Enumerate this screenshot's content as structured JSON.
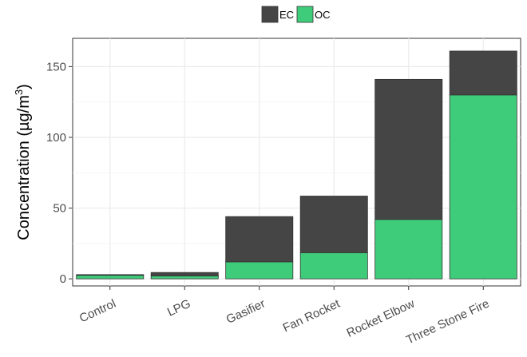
{
  "chart_data": {
    "type": "bar",
    "stacked": true,
    "categories": [
      "Control",
      "LPG",
      "Gasifier",
      "Fan Rocket",
      "Rocket Elbow",
      "Three Stone Fire"
    ],
    "series": [
      {
        "name": "OC",
        "color": "#3fcc7a",
        "values": [
          2.5,
          2,
          12,
          18.5,
          42,
          130
        ]
      },
      {
        "name": "EC",
        "color": "#454545",
        "values": [
          0.5,
          2.5,
          32,
          40,
          99,
          31
        ]
      }
    ],
    "totals": [
      3,
      4.5,
      44,
      58.5,
      141,
      161
    ],
    "ylabel": "Concentration (µg/m",
    "ylabel_superscript": "3",
    "ylabel_suffix": ")",
    "ylim": [
      -5,
      170
    ],
    "yticks": [
      0,
      50,
      100,
      150
    ],
    "ytick_labels": [
      "0",
      "50",
      "100",
      "150"
    ],
    "grid": true,
    "legend": {
      "position": "top-center",
      "order": [
        "EC",
        "OC"
      ]
    },
    "xtick_rotation": -25
  }
}
